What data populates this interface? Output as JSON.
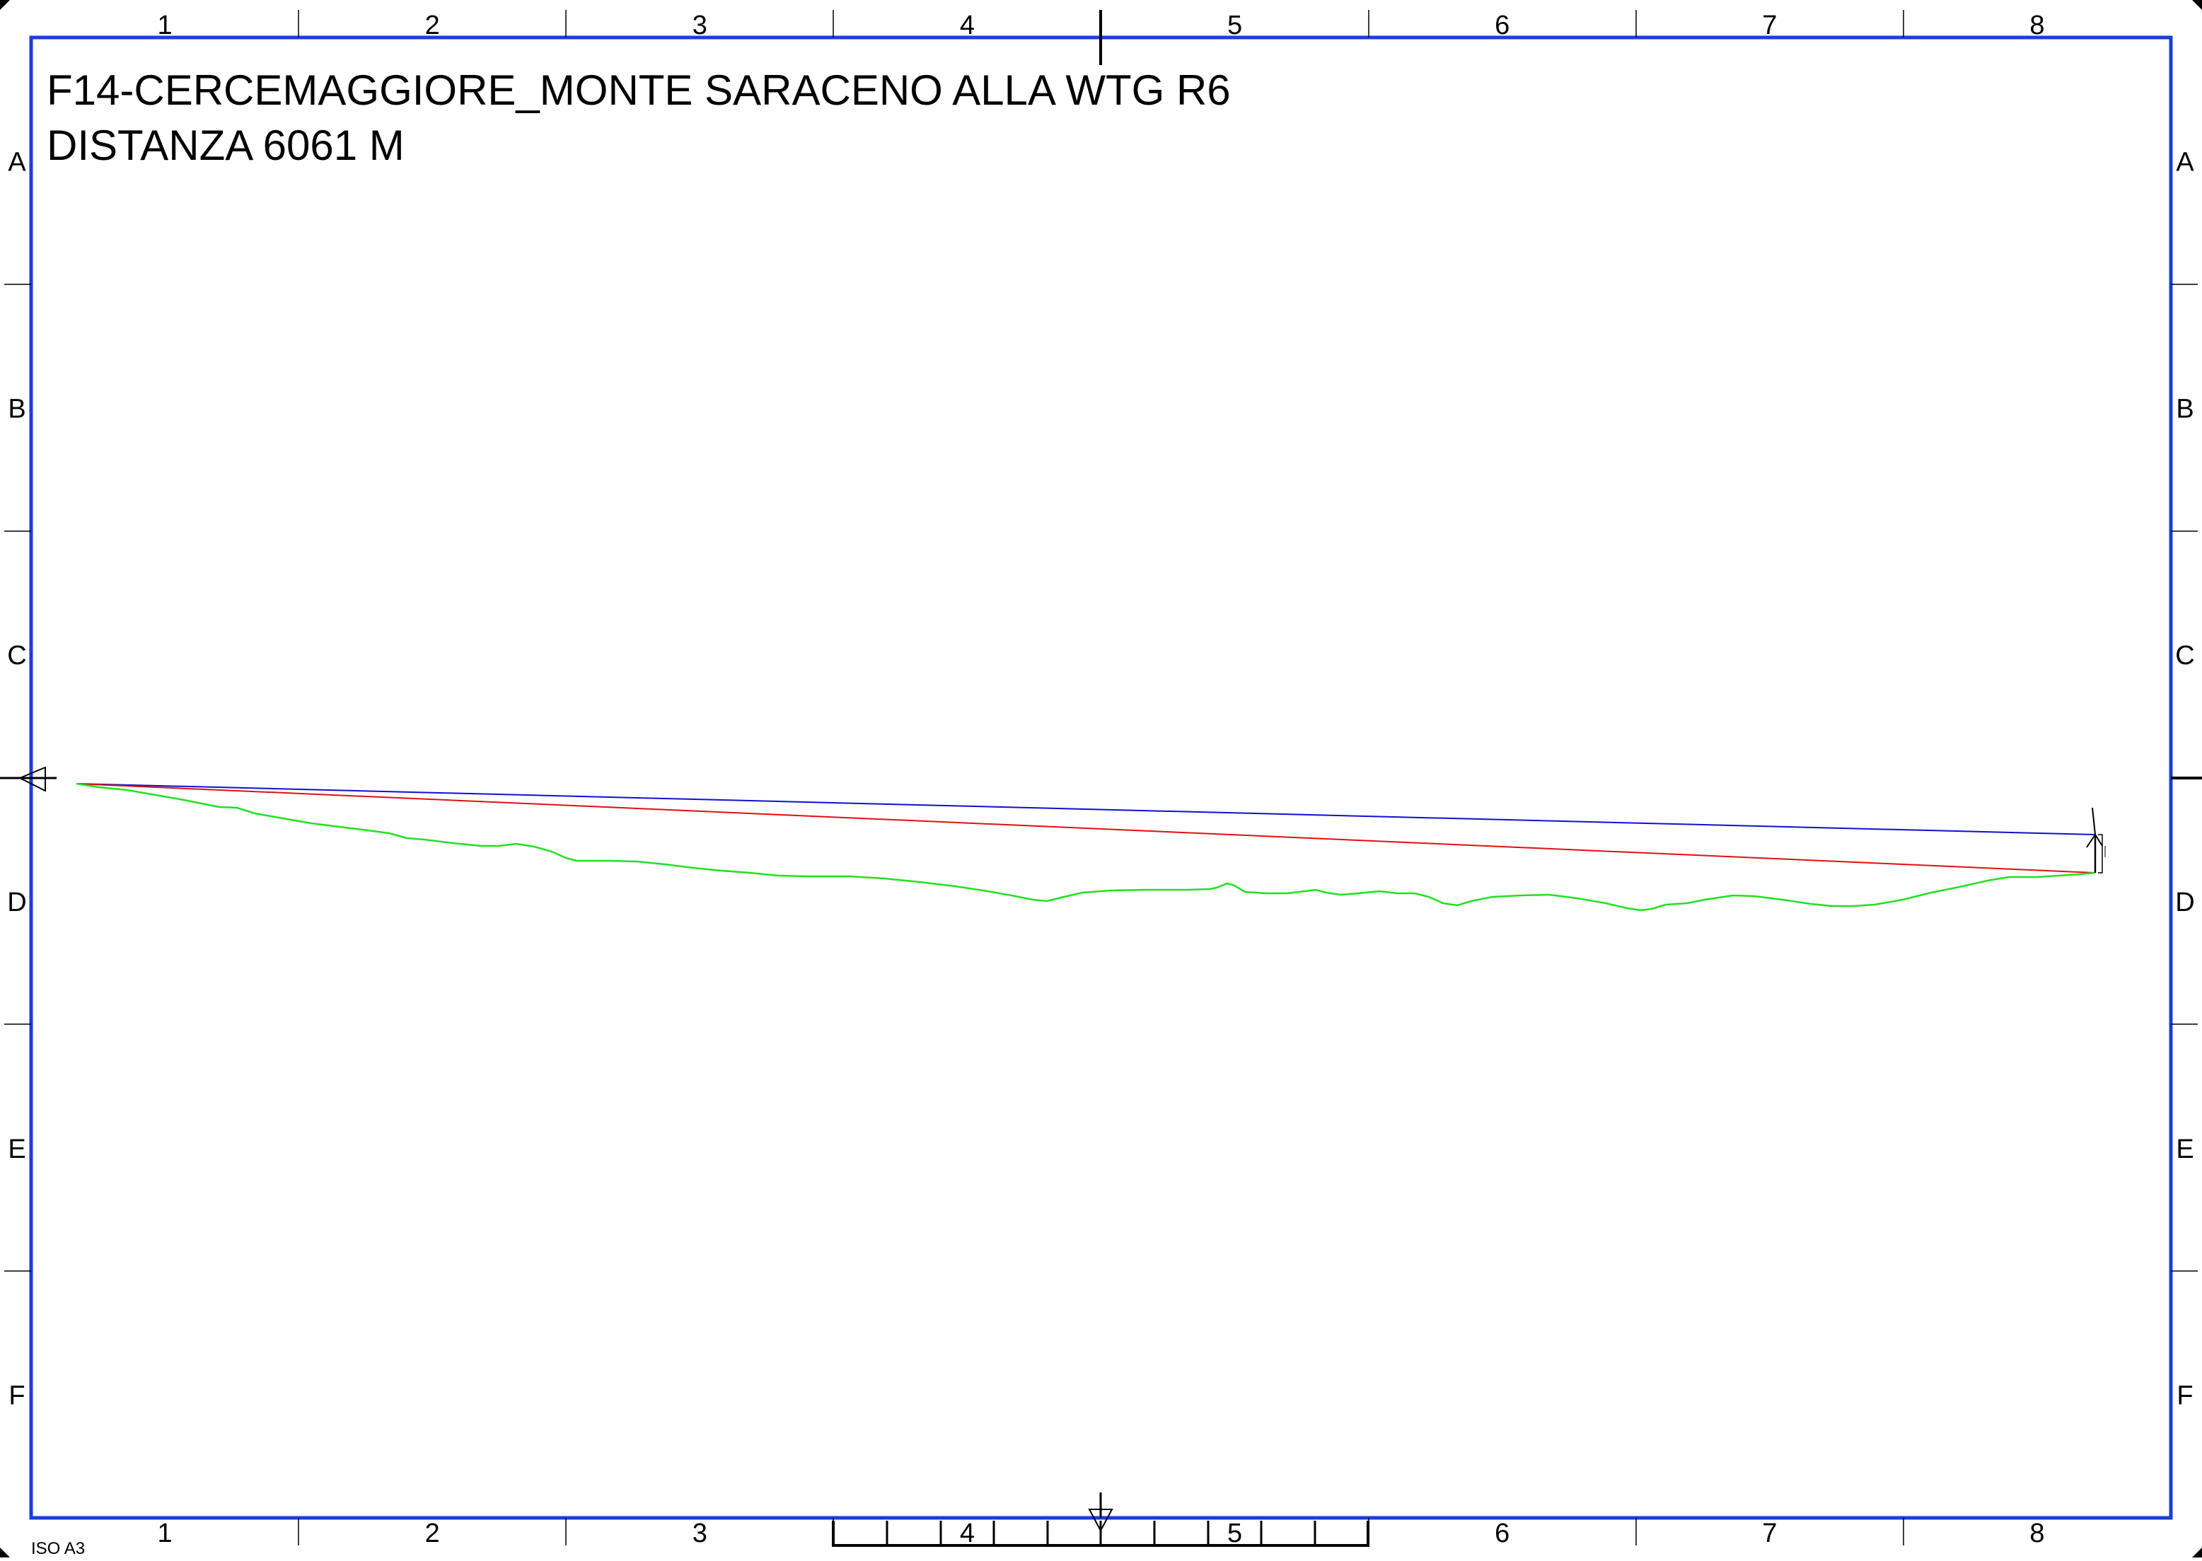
{
  "drawing": {
    "title": "F14-CERCEMAGGIORE_MONTE SARACENO ALLA WTG R6",
    "distance_label": "DISTANZA 6061 M",
    "sheet_size": "ISO A3"
  },
  "grid": {
    "columns": [
      "1",
      "2",
      "3",
      "4",
      "5",
      "6",
      "7",
      "8"
    ],
    "rows": [
      "A",
      "B",
      "C",
      "D",
      "E",
      "F"
    ]
  },
  "colors": {
    "frame": "#1a3fd6",
    "terrain_profile": "#22e022",
    "sight_line_red": "#e01010",
    "sight_line_blue": "#1010d0",
    "grid_text": "#000000"
  },
  "icons": [
    "observer-marker-icon",
    "turbine-icon",
    "center-marker-icon"
  ]
}
